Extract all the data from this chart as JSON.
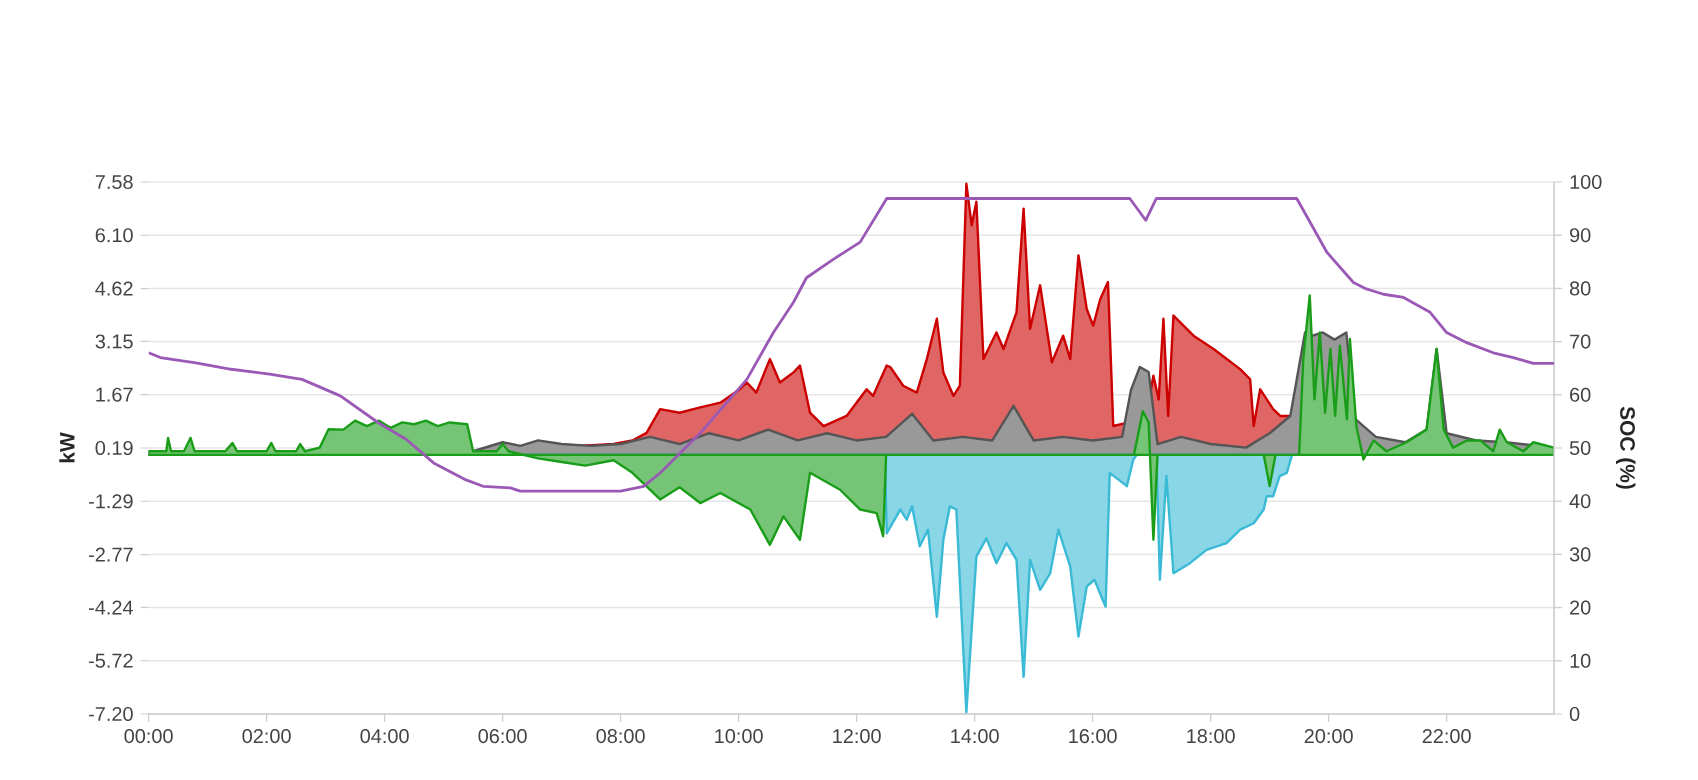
{
  "chart_data": {
    "type": "area",
    "ylabel": "kW",
    "y2label": "SOC (%)",
    "xlim": [
      0,
      23.82
    ],
    "ylim": [
      -7.2,
      7.58
    ],
    "y2lim": [
      0,
      100
    ],
    "grid": "y",
    "xticks": [
      {
        "value": 0,
        "label": "00:00"
      },
      {
        "value": 2,
        "label": "02:00"
      },
      {
        "value": 4,
        "label": "04:00"
      },
      {
        "value": 6,
        "label": "06:00"
      },
      {
        "value": 8,
        "label": "08:00"
      },
      {
        "value": 10,
        "label": "10:00"
      },
      {
        "value": 12,
        "label": "12:00"
      },
      {
        "value": 14,
        "label": "14:00"
      },
      {
        "value": 16,
        "label": "16:00"
      },
      {
        "value": 18,
        "label": "18:00"
      },
      {
        "value": 20,
        "label": "20:00"
      },
      {
        "value": 22,
        "label": "22:00"
      }
    ],
    "yticks": [
      7.58,
      {
        "value": 6.1,
        "label": "6.10"
      },
      4.62,
      3.15,
      1.67,
      0.19,
      -1.29,
      -2.77,
      -4.24,
      -5.72,
      {
        "value": -7.2,
        "label": "-7.20"
      }
    ],
    "y2ticks": [
      0,
      10,
      20,
      30,
      40,
      50,
      60,
      70,
      80,
      90,
      100
    ],
    "series": [
      {
        "color": "#cc0000",
        "x": [
          0,
          6.5,
          6.86,
          7.3,
          7.88,
          8.2,
          8.44,
          8.67,
          9.0,
          9.35,
          9.69,
          10.02,
          10.14,
          10.3,
          10.53,
          10.7,
          10.93,
          11.04,
          11.21,
          11.44,
          11.83,
          12.17,
          12.28,
          12.51,
          12.57,
          12.79,
          13.02,
          13.19,
          13.36,
          13.47,
          13.64,
          13.75,
          13.86,
          13.95,
          14.03,
          14.15,
          14.37,
          14.49,
          14.71,
          14.83,
          14.94,
          15.11,
          15.31,
          15.5,
          15.62,
          15.76,
          15.9,
          16.01,
          16.13,
          16.26,
          16.35,
          16.58,
          16.75,
          16.92,
          17.03,
          17.12,
          17.2,
          17.28,
          17.37,
          17.71,
          18.05,
          18.5,
          18.67,
          18.73,
          18.84,
          19.06,
          19.18,
          19.4,
          19.55,
          23.82
        ],
        "values": [
          0,
          0,
          0.2,
          0.25,
          0.3,
          0.4,
          0.61,
          1.27,
          1.17,
          1.32,
          1.45,
          1.82,
          2.01,
          1.73,
          2.66,
          2.01,
          2.29,
          2.48,
          1.17,
          0.8,
          1.08,
          1.82,
          1.64,
          2.48,
          2.44,
          1.92,
          1.73,
          2.66,
          3.78,
          2.29,
          1.64,
          1.92,
          7.53,
          6.38,
          7.03,
          2.66,
          3.4,
          2.94,
          3.96,
          6.84,
          3.5,
          4.71,
          2.57,
          3.31,
          2.66,
          5.54,
          4.05,
          3.59,
          4.33,
          4.8,
          0.8,
          0.89,
          1.27,
          1.17,
          2.2,
          1.54,
          3.78,
          1.08,
          3.87,
          3.31,
          2.94,
          2.38,
          2.1,
          0.8,
          1.82,
          1.27,
          1.08,
          1.08,
          0,
          0
        ]
      },
      {
        "color": "#555555",
        "x": [
          0,
          5.5,
          6.0,
          6.3,
          6.6,
          7.0,
          7.5,
          8.0,
          8.5,
          9.0,
          9.5,
          10.0,
          10.5,
          11.0,
          11.5,
          12.0,
          12.5,
          12.94,
          13.3,
          13.8,
          14.3,
          14.66,
          15.0,
          15.5,
          16.0,
          16.5,
          16.65,
          16.8,
          16.95,
          17.1,
          17.5,
          18.0,
          18.6,
          19.0,
          19.35,
          19.6,
          19.7,
          19.9,
          20.1,
          20.3,
          20.45,
          20.8,
          21.3,
          21.66,
          21.83,
          22.0,
          22.5,
          23.0,
          23.82
        ],
        "values": [
          0.1,
          0.1,
          0.35,
          0.25,
          0.4,
          0.3,
          0.25,
          0.3,
          0.5,
          0.3,
          0.6,
          0.4,
          0.7,
          0.4,
          0.6,
          0.4,
          0.5,
          1.14,
          0.4,
          0.5,
          0.4,
          1.36,
          0.4,
          0.5,
          0.4,
          0.5,
          1.8,
          2.44,
          2.3,
          0.3,
          0.5,
          0.3,
          0.2,
          0.6,
          1.08,
          3.4,
          3.3,
          3.4,
          3.2,
          3.4,
          1.0,
          0.5,
          0.35,
          0.7,
          2.94,
          0.6,
          0.4,
          0.35,
          0.2
        ]
      },
      {
        "color": "#3bbad6",
        "x": [
          0,
          12.48,
          12.51,
          12.74,
          12.85,
          12.94,
          13.07,
          13.21,
          13.36,
          13.47,
          13.58,
          13.69,
          13.86,
          14.03,
          14.2,
          14.37,
          14.54,
          14.71,
          14.83,
          14.94,
          15.11,
          15.28,
          15.42,
          15.62,
          15.76,
          15.9,
          16.03,
          16.22,
          16.29,
          16.58,
          16.69,
          16.75,
          17.08,
          17.14,
          17.25,
          17.37,
          17.65,
          17.93,
          18.27,
          18.5,
          18.73,
          18.9,
          18.95,
          19.06,
          19.17,
          19.29,
          19.38,
          23.82
        ],
        "values": [
          0,
          0,
          -2.18,
          -1.52,
          -1.8,
          -1.43,
          -2.54,
          -2.08,
          -4.5,
          -2.36,
          -1.43,
          -1.52,
          -7.15,
          -2.82,
          -2.32,
          -3.01,
          -2.45,
          -2.92,
          -6.17,
          -2.92,
          -3.75,
          -3.29,
          -2.08,
          -3.1,
          -5.05,
          -3.66,
          -3.47,
          -4.22,
          -0.5,
          -0.87,
          -0.13,
          0,
          0,
          -3.47,
          -0.59,
          -3.29,
          -3.01,
          -2.64,
          -2.45,
          -2.08,
          -1.9,
          -1.52,
          -1.15,
          -1.15,
          -0.59,
          -0.5,
          0,
          0
        ]
      },
      {
        "color": "#1a9e1a",
        "x": [
          0,
          0.3,
          0.33,
          0.38,
          0.6,
          0.71,
          0.78,
          1.3,
          1.42,
          1.5,
          2.0,
          2.08,
          2.15,
          2.5,
          2.57,
          2.65,
          2.9,
          3.05,
          3.3,
          3.5,
          3.7,
          3.9,
          4.1,
          4.3,
          4.5,
          4.7,
          4.9,
          5.1,
          5.4,
          5.5,
          5.9,
          6.0,
          6.1,
          6.6,
          7.0,
          7.4,
          7.88,
          8.2,
          8.67,
          9.0,
          9.35,
          9.69,
          10.2,
          10.53,
          10.76,
          11.04,
          11.21,
          11.72,
          12.06,
          12.34,
          12.45,
          12.5,
          16.7,
          16.85,
          16.95,
          17.03,
          17.1,
          18.9,
          19.0,
          19.1,
          19.5,
          19.57,
          19.68,
          19.76,
          19.85,
          19.94,
          20.03,
          20.11,
          20.19,
          20.31,
          20.36,
          20.47,
          20.59,
          20.76,
          20.98,
          21.32,
          21.66,
          21.83,
          21.95,
          22.11,
          22.34,
          22.57,
          22.79,
          22.9,
          23.02,
          23.3,
          23.47,
          23.82
        ],
        "values": [
          0.1,
          0.1,
          0.47,
          0.1,
          0.1,
          0.47,
          0.1,
          0.1,
          0.33,
          0.1,
          0.1,
          0.33,
          0.1,
          0.1,
          0.3,
          0.1,
          0.2,
          0.71,
          0.7,
          0.95,
          0.8,
          0.95,
          0.75,
          0.9,
          0.85,
          0.95,
          0.8,
          0.9,
          0.85,
          0.1,
          0.1,
          0.3,
          0.1,
          -0.1,
          -0.2,
          -0.3,
          -0.15,
          -0.5,
          -1.24,
          -0.9,
          -1.34,
          -1.06,
          -1.52,
          -2.5,
          -1.71,
          -2.36,
          -0.5,
          -0.97,
          -1.52,
          -1.62,
          -2.26,
          0,
          0,
          1.21,
          0.9,
          -2.36,
          0,
          0,
          -0.87,
          0,
          0,
          2.66,
          4.43,
          1.54,
          3.4,
          1.17,
          2.94,
          1.08,
          3.03,
          0.99,
          3.22,
          0.8,
          -0.13,
          0.4,
          0.1,
          0.35,
          0.7,
          2.94,
          0.7,
          0.2,
          0.4,
          0.4,
          0.1,
          0.7,
          0.35,
          0.1,
          0.35,
          0.2
        ]
      },
      {
        "type": "line",
        "axis": "y2",
        "color": "#9b59b6",
        "x": [
          0,
          0.2,
          0.8,
          1.4,
          2.05,
          2.6,
          3.25,
          3.9,
          4.37,
          4.83,
          5.38,
          5.67,
          6.13,
          6.3,
          8.0,
          8.39,
          8.67,
          9.35,
          10.14,
          10.59,
          10.93,
          11.15,
          11.61,
          12.06,
          12.51,
          16.63,
          16.9,
          17.08,
          19.46,
          19.97,
          20.42,
          20.64,
          20.93,
          21.27,
          21.72,
          22.0,
          22.34,
          22.79,
          23.13,
          23.47,
          23.82
        ],
        "values": [
          67.9,
          67,
          66,
          64.8,
          63.9,
          62.9,
          59.8,
          54.7,
          51.6,
          47.2,
          44,
          42.8,
          42.5,
          41.9,
          41.9,
          42.8,
          45.3,
          52.8,
          62.9,
          71.7,
          77.4,
          82,
          85.5,
          88.7,
          96.9,
          96.9,
          92.8,
          96.9,
          96.9,
          86.8,
          81.1,
          79.9,
          78.9,
          78.3,
          75.5,
          71.7,
          69.8,
          67.9,
          67,
          65.9,
          65.9
        ]
      }
    ]
  }
}
